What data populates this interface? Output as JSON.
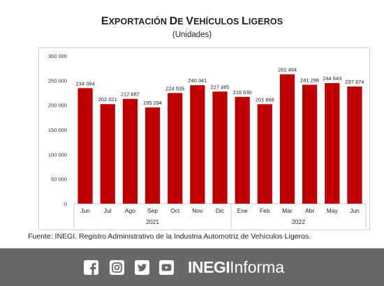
{
  "header": {
    "title": "Exportación de vehículos ligeros",
    "subtitle": "(Unidades)"
  },
  "chart_data": {
    "type": "bar",
    "title": "Exportación de vehículos ligeros",
    "subtitle": "(Unidades)",
    "categories": [
      "Jun",
      "Jul",
      "Ago",
      "Sep",
      "Oct",
      "Nov",
      "Dic",
      "Ene",
      "Feb",
      "Mar",
      "Abr",
      "May",
      "Jun"
    ],
    "values": [
      234394,
      202021,
      212687,
      195294,
      224535,
      240341,
      227465,
      216630,
      201868,
      262494,
      241286,
      244643,
      237674
    ],
    "value_labels": [
      "234 394",
      "202 021",
      "212 687",
      "195 294",
      "224 535",
      "240 341",
      "227 465",
      "216 630",
      "201 868",
      "262 494",
      "241 286",
      "244 643",
      "237 674"
    ],
    "year_groups": [
      {
        "label": "2021",
        "count": 7
      },
      {
        "label": "2022",
        "count": 6
      }
    ],
    "yticks": [
      "0",
      "50 000",
      "100 000",
      "150 000",
      "200 000",
      "250 000",
      "300 000"
    ],
    "ytick_values": [
      0,
      50000,
      100000,
      150000,
      200000,
      250000,
      300000
    ],
    "ylim": [
      0,
      300000
    ],
    "xlabel": "",
    "ylabel": "",
    "grid": false,
    "legend": "none",
    "bar_color": "#c00000"
  },
  "source": "Fuente: INEGI. Registro Administrativo de la Industria Automotriz de Vehículos Ligeros.",
  "footer": {
    "background": "#686868",
    "social_icons": [
      "facebook-icon",
      "instagram-icon",
      "twitter-icon",
      "youtube-icon"
    ],
    "brand_bold": "INEGI",
    "brand_light": "Informa"
  }
}
